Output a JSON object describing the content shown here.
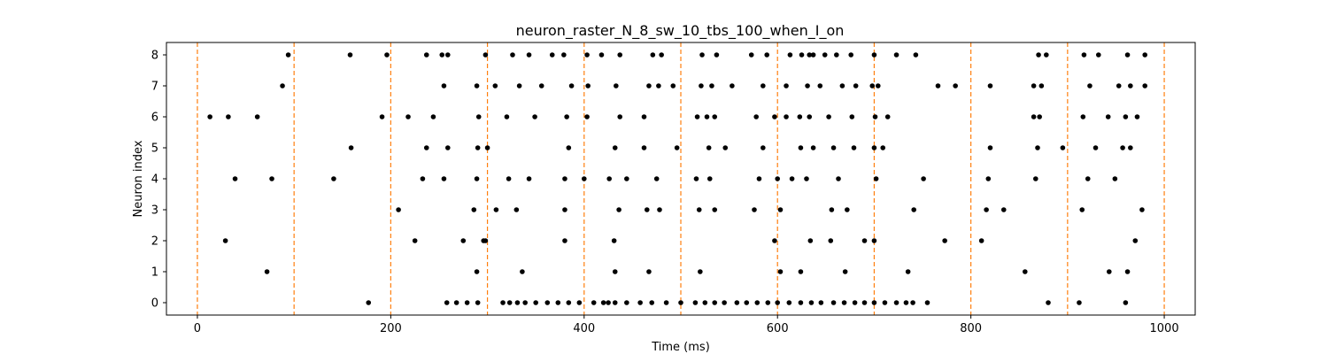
{
  "chart_data": {
    "type": "scatter",
    "title": "neuron_raster_N_8_sw_10_tbs_100_when_I_on",
    "xlabel": "Time (ms)",
    "ylabel": "Neuron index",
    "xlim": [
      -32,
      1032
    ],
    "ylim": [
      -0.4,
      8.4
    ],
    "xticks": [
      0,
      200,
      400,
      600,
      800,
      1000
    ],
    "yticks": [
      0,
      1,
      2,
      3,
      4,
      5,
      6,
      7,
      8
    ],
    "grid": false,
    "marker_color": "#000000",
    "vline_color": "#ff7f0e",
    "vlines": [
      0,
      100,
      200,
      300,
      400,
      500,
      600,
      700,
      800,
      900,
      1000
    ],
    "spikes": [
      {
        "neuron": 0,
        "times": [
          177,
          258,
          268,
          279,
          290,
          316,
          323,
          331,
          339,
          350,
          362,
          373,
          384,
          395,
          410,
          420,
          425,
          432,
          444,
          458,
          470,
          485,
          500,
          515,
          525,
          535,
          545,
          558,
          568,
          579,
          590,
          600,
          612,
          624,
          635,
          645,
          658,
          669,
          680,
          690,
          700,
          711,
          723,
          733,
          740,
          755,
          880,
          912,
          960
        ]
      },
      {
        "neuron": 1,
        "times": [
          72,
          289,
          336,
          432,
          467,
          520,
          603,
          624,
          670,
          735,
          856,
          943,
          962
        ]
      },
      {
        "neuron": 2,
        "times": [
          29,
          225,
          275,
          296,
          298,
          380,
          431,
          597,
          634,
          655,
          690,
          700,
          773,
          811,
          970
        ]
      },
      {
        "neuron": 3,
        "times": [
          208,
          286,
          309,
          330,
          380,
          436,
          465,
          478,
          519,
          535,
          576,
          603,
          656,
          672,
          741,
          816,
          834,
          915,
          977
        ]
      },
      {
        "neuron": 4,
        "times": [
          39,
          77,
          141,
          233,
          255,
          289,
          322,
          343,
          380,
          400,
          426,
          444,
          475,
          516,
          530,
          581,
          600,
          615,
          630,
          663,
          702,
          751,
          818,
          867,
          921,
          949
        ]
      },
      {
        "neuron": 5,
        "times": [
          159,
          237,
          259,
          290,
          300,
          384,
          432,
          462,
          496,
          529,
          546,
          585,
          624,
          637,
          658,
          679,
          700,
          709,
          820,
          869,
          895,
          929,
          957,
          965
        ]
      },
      {
        "neuron": 6,
        "times": [
          13,
          32,
          62,
          191,
          218,
          244,
          291,
          320,
          349,
          382,
          403,
          437,
          462,
          517,
          527,
          535,
          578,
          597,
          609,
          623,
          633,
          653,
          677,
          701,
          714,
          865,
          871,
          916,
          942,
          960,
          972
        ]
      },
      {
        "neuron": 7,
        "times": [
          88,
          255,
          289,
          308,
          333,
          356,
          387,
          404,
          433,
          467,
          477,
          492,
          521,
          532,
          553,
          585,
          609,
          631,
          644,
          667,
          681,
          698,
          704,
          766,
          784,
          820,
          865,
          873,
          923,
          953,
          965,
          980
        ]
      },
      {
        "neuron": 8,
        "times": [
          94,
          158,
          196,
          237,
          253,
          259,
          298,
          326,
          343,
          367,
          379,
          403,
          418,
          437,
          471,
          480,
          522,
          537,
          573,
          589,
          613,
          625,
          633,
          637,
          649,
          661,
          676,
          700,
          723,
          743,
          870,
          878,
          917,
          932,
          962,
          980
        ]
      }
    ]
  }
}
